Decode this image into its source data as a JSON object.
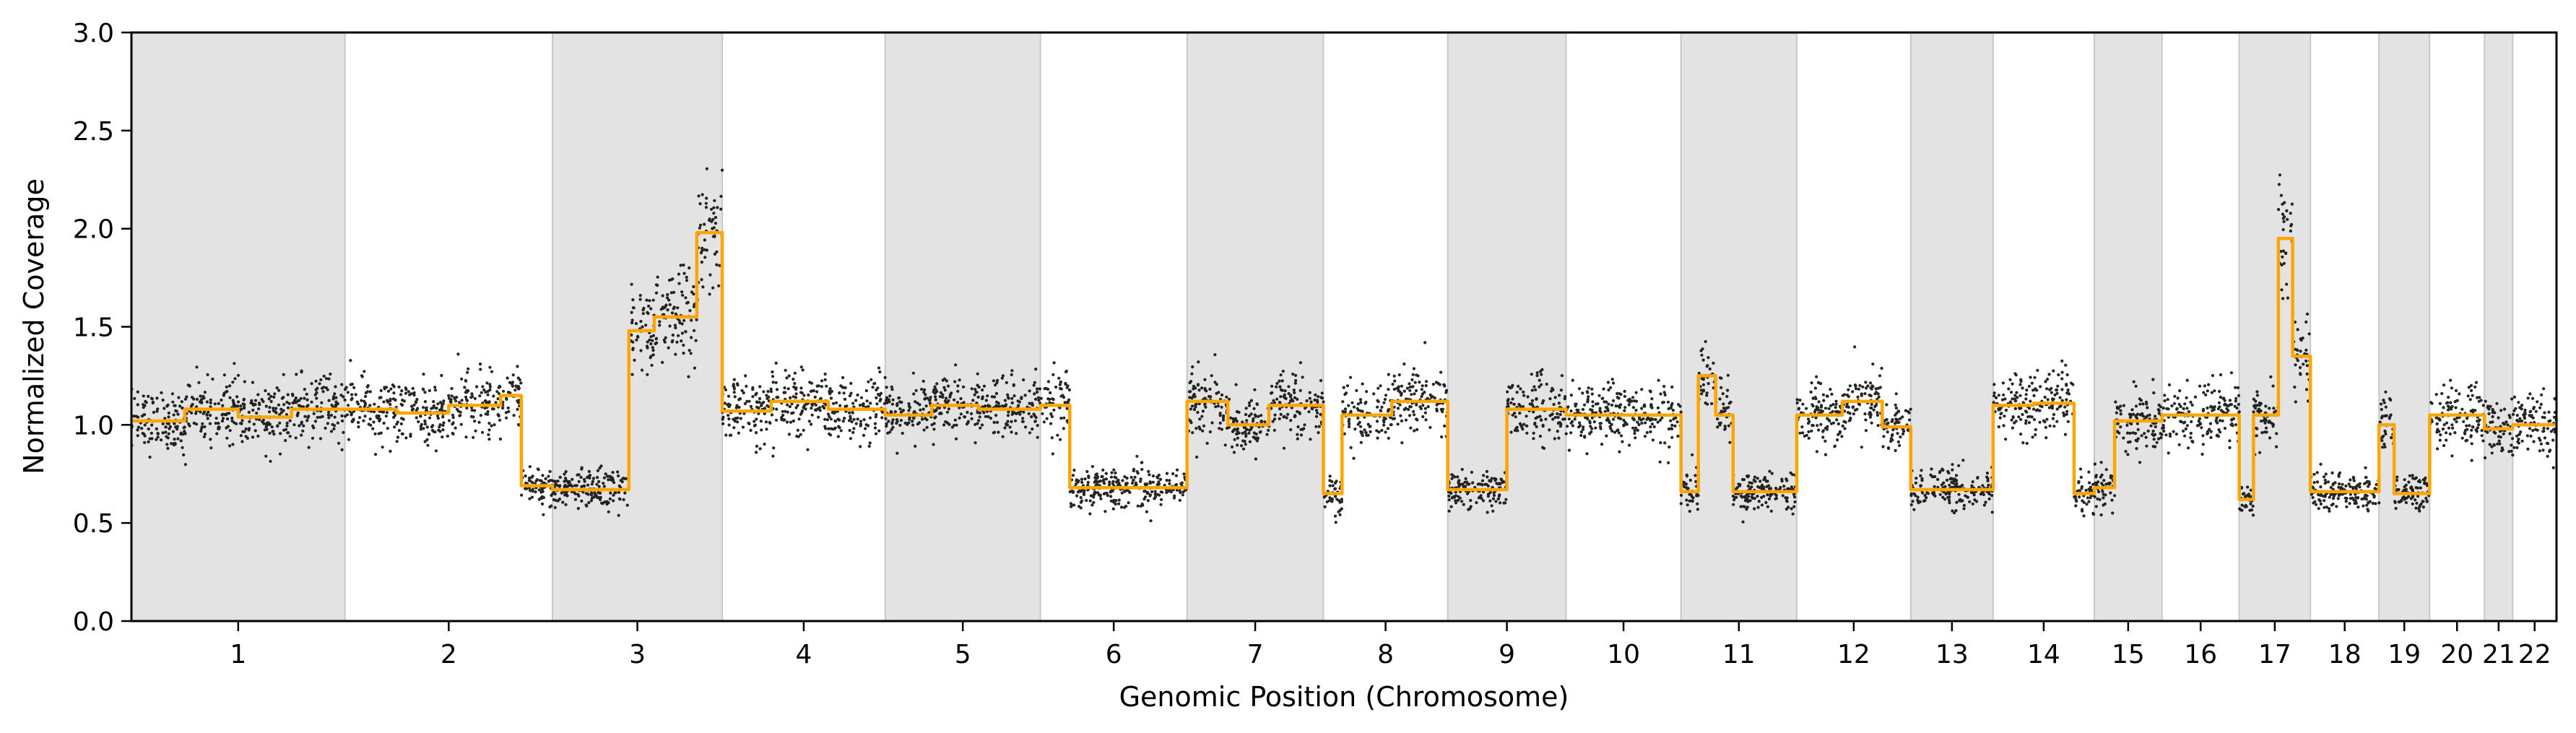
{
  "chart_data": {
    "type": "scatter",
    "xlabel": "Genomic Position (Chromosome)",
    "ylabel": "Normalized Coverage",
    "ylim": [
      0.0,
      3.0
    ],
    "yticks": [
      "0.0",
      "0.5",
      "1.0",
      "1.5",
      "2.0",
      "2.5",
      "3.0"
    ],
    "grid": false,
    "legend": "none",
    "colors": {
      "points": "#000000",
      "segments": "#FFA500",
      "shaded_band": "#e3e3e3",
      "band_edge": "#c8c8c8"
    },
    "chromosomes": [
      {
        "label": "1",
        "length": 249,
        "shaded": true
      },
      {
        "label": "2",
        "length": 242,
        "shaded": false
      },
      {
        "label": "3",
        "length": 198,
        "shaded": true
      },
      {
        "label": "4",
        "length": 190,
        "shaded": false
      },
      {
        "label": "5",
        "length": 181,
        "shaded": true
      },
      {
        "label": "6",
        "length": 171,
        "shaded": false
      },
      {
        "label": "7",
        "length": 159,
        "shaded": true
      },
      {
        "label": "8",
        "length": 145,
        "shaded": false
      },
      {
        "label": "9",
        "length": 138,
        "shaded": true
      },
      {
        "label": "10",
        "length": 134,
        "shaded": false
      },
      {
        "label": "11",
        "length": 135,
        "shaded": true
      },
      {
        "label": "12",
        "length": 133,
        "shaded": false
      },
      {
        "label": "13",
        "length": 96,
        "shaded": true
      },
      {
        "label": "14",
        "length": 118,
        "shaded": false
      },
      {
        "label": "15",
        "length": 79,
        "shaded": true
      },
      {
        "label": "16",
        "length": 90,
        "shaded": false
      },
      {
        "label": "17",
        "length": 83,
        "shaded": true
      },
      {
        "label": "18",
        "length": 80,
        "shaded": false
      },
      {
        "label": "19",
        "length": 59,
        "shaded": true
      },
      {
        "label": "20",
        "length": 64,
        "shaded": false
      },
      {
        "label": "21",
        "length": 33,
        "shaded": true
      },
      {
        "label": "22",
        "length": 51,
        "shaded": false
      }
    ],
    "segments": [
      [
        {
          "from": 0.0,
          "to": 0.25,
          "value": 1.02
        },
        {
          "from": 0.25,
          "to": 0.5,
          "value": 1.08
        },
        {
          "from": 0.5,
          "to": 0.75,
          "value": 1.04
        },
        {
          "from": 0.75,
          "to": 1.0,
          "value": 1.08
        }
      ],
      [
        {
          "from": 0.0,
          "to": 0.25,
          "value": 1.08
        },
        {
          "from": 0.25,
          "to": 0.5,
          "value": 1.06
        },
        {
          "from": 0.5,
          "to": 0.75,
          "value": 1.1
        },
        {
          "from": 0.75,
          "to": 0.85,
          "value": 1.15
        },
        {
          "from": 0.85,
          "to": 1.0,
          "value": 0.69
        }
      ],
      [
        {
          "from": 0.0,
          "to": 0.45,
          "value": 0.67
        },
        {
          "from": 0.45,
          "to": 0.6,
          "value": 1.48
        },
        {
          "from": 0.6,
          "to": 0.85,
          "value": 1.55
        },
        {
          "from": 0.85,
          "to": 1.0,
          "value": 1.98
        }
      ],
      [
        {
          "from": 0.0,
          "to": 0.3,
          "value": 1.07
        },
        {
          "from": 0.3,
          "to": 0.65,
          "value": 1.12
        },
        {
          "from": 0.65,
          "to": 1.0,
          "value": 1.08
        }
      ],
      [
        {
          "from": 0.0,
          "to": 0.3,
          "value": 1.05
        },
        {
          "from": 0.3,
          "to": 0.6,
          "value": 1.1
        },
        {
          "from": 0.6,
          "to": 1.0,
          "value": 1.08
        }
      ],
      [
        {
          "from": 0.0,
          "to": 0.2,
          "value": 1.1
        },
        {
          "from": 0.2,
          "to": 1.0,
          "value": 0.68
        }
      ],
      [
        {
          "from": 0.0,
          "to": 0.3,
          "value": 1.12
        },
        {
          "from": 0.3,
          "to": 0.6,
          "value": 1.0
        },
        {
          "from": 0.6,
          "to": 1.0,
          "value": 1.1
        }
      ],
      [
        {
          "from": 0.0,
          "to": 0.15,
          "value": 0.65
        },
        {
          "from": 0.15,
          "to": 0.55,
          "value": 1.05
        },
        {
          "from": 0.55,
          "to": 1.0,
          "value": 1.12
        }
      ],
      [
        {
          "from": 0.0,
          "to": 0.5,
          "value": 0.67
        },
        {
          "from": 0.5,
          "to": 1.0,
          "value": 1.08
        }
      ],
      [
        {
          "from": 0.0,
          "to": 1.0,
          "value": 1.05
        }
      ],
      [
        {
          "from": 0.0,
          "to": 0.15,
          "value": 0.66
        },
        {
          "from": 0.15,
          "to": 0.3,
          "value": 1.25
        },
        {
          "from": 0.3,
          "to": 0.45,
          "value": 1.05
        },
        {
          "from": 0.45,
          "to": 1.0,
          "value": 0.66
        }
      ],
      [
        {
          "from": 0.0,
          "to": 0.4,
          "value": 1.05
        },
        {
          "from": 0.4,
          "to": 0.75,
          "value": 1.12
        },
        {
          "from": 0.75,
          "to": 1.0,
          "value": 0.99
        }
      ],
      [
        {
          "from": 0.0,
          "to": 1.0,
          "value": 0.67
        }
      ],
      [
        {
          "from": 0.0,
          "to": 0.4,
          "value": 1.1
        },
        {
          "from": 0.4,
          "to": 0.8,
          "value": 1.11
        },
        {
          "from": 0.8,
          "to": 1.0,
          "value": 0.65
        }
      ],
      [
        {
          "from": 0.0,
          "to": 0.3,
          "value": 0.68
        },
        {
          "from": 0.3,
          "to": 1.0,
          "value": 1.02
        }
      ],
      [
        {
          "from": 0.0,
          "to": 1.0,
          "value": 1.05
        }
      ],
      [
        {
          "from": 0.0,
          "to": 0.2,
          "value": 0.62
        },
        {
          "from": 0.2,
          "to": 0.55,
          "value": 1.05
        },
        {
          "from": 0.55,
          "to": 0.75,
          "value": 1.95
        },
        {
          "from": 0.75,
          "to": 1.0,
          "value": 1.35
        }
      ],
      [
        {
          "from": 0.0,
          "to": 1.0,
          "value": 0.66
        }
      ],
      [
        {
          "from": 0.0,
          "to": 0.3,
          "value": 1.0
        },
        {
          "from": 0.3,
          "to": 1.0,
          "value": 0.65
        }
      ],
      [
        {
          "from": 0.0,
          "to": 1.0,
          "value": 1.05
        }
      ],
      [
        {
          "from": 0.0,
          "to": 1.0,
          "value": 0.98
        }
      ],
      [
        {
          "from": 0.0,
          "to": 1.0,
          "value": 1.0
        }
      ]
    ]
  }
}
